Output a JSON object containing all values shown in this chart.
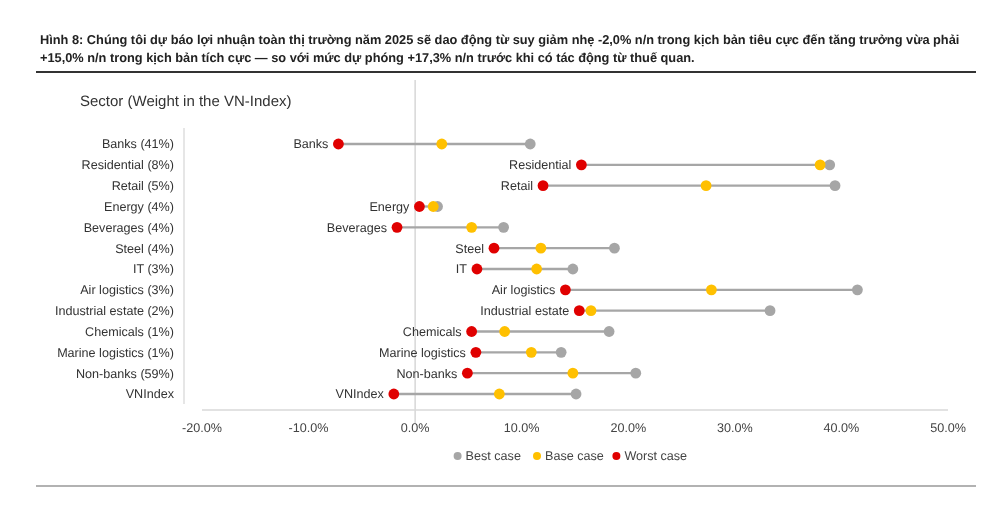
{
  "chart_data": {
    "type": "scatter",
    "orientation": "horizontal",
    "title": "Hình 8: Chúng tôi dự báo lợi nhuận toàn thị trường năm 2025 sẽ dao động từ suy giảm nhẹ -2,0% n/n trong kịch bản tiêu cực đến tăng trưởng vừa phải +15,0% n/n trong kịch bản tích cực — so với mức dự phóng +17,3% n/n trước khi có tác động từ thuế quan.",
    "ylabel": "Sector (Weight in the VN-Index)",
    "categories": [
      "Banks (41%)",
      "Residential (8%)",
      "Retail (5%)",
      "Energy (4%)",
      "Beverages (4%)",
      "Steel (4%)",
      "IT (3%)",
      "Air logistics (3%)",
      "Industrial estate (2%)",
      "Chemicals (1%)",
      "Marine logistics (1%)",
      "Non-banks (59%)",
      "VNIndex"
    ],
    "series": [
      {
        "name": "Best case",
        "color": "#a6a6a6",
        "values": [
          10.8,
          38.9,
          39.4,
          2.1,
          8.3,
          18.7,
          14.8,
          41.5,
          33.3,
          18.2,
          13.7,
          20.7,
          15.1
        ]
      },
      {
        "name": "Base case",
        "color": "#ffc000",
        "values": [
          2.5,
          38.0,
          27.3,
          1.7,
          5.3,
          11.8,
          11.4,
          27.8,
          16.5,
          8.4,
          10.9,
          14.8,
          7.9
        ]
      },
      {
        "name": "Worst case",
        "color": "#e00000",
        "values": [
          -7.2,
          15.6,
          12.0,
          0.4,
          -1.7,
          7.4,
          5.8,
          14.1,
          15.4,
          5.3,
          5.7,
          4.9,
          -2.0
        ]
      }
    ],
    "annotations": [
      {
        "text": "Banks",
        "x": -7.2,
        "y": "Banks (41%)"
      },
      {
        "text": "Residential",
        "x": 15.6,
        "y": "Residential (8%)"
      },
      {
        "text": "Retail",
        "x": 12.0,
        "y": "Retail (5%)"
      },
      {
        "text": "Energy",
        "x": 0.4,
        "y": "Energy (4%)"
      },
      {
        "text": "Beverages",
        "x": -1.7,
        "y": "Beverages (4%)"
      },
      {
        "text": "Steel",
        "x": 7.4,
        "y": "Steel (4%)"
      },
      {
        "text": "IT",
        "x": 5.8,
        "y": "IT (3%)"
      },
      {
        "text": "Air logistics",
        "x": 14.1,
        "y": "Air logistics (3%)"
      },
      {
        "text": "Industrial estate",
        "x": 15.4,
        "y": "Industrial estate (2%)"
      },
      {
        "text": "Chemicals",
        "x": 5.3,
        "y": "Chemicals (1%)"
      },
      {
        "text": "Marine logistics",
        "x": 5.7,
        "y": "Marine logistics (1%)"
      },
      {
        "text": "Non-banks",
        "x": 4.9,
        "y": "Non-banks (59%)"
      },
      {
        "text": "VNIndex",
        "x": -2.0,
        "y": "VNIndex"
      }
    ],
    "xlim": [
      -20,
      50
    ],
    "xticks": [
      {
        "value": -20,
        "label": "-20.0%"
      },
      {
        "value": -10,
        "label": "-10.0%"
      },
      {
        "value": 0,
        "label": "0.0%"
      },
      {
        "value": 10,
        "label": "10.0%"
      },
      {
        "value": 20,
        "label": "20.0%"
      },
      {
        "value": 30,
        "label": "30.0%"
      },
      {
        "value": 40,
        "label": "40.0%"
      },
      {
        "value": 50,
        "label": "50.0%"
      }
    ],
    "ref_lines": [
      {
        "axis": "x",
        "value": 0,
        "color": "#d9d9d9"
      }
    ],
    "marker": "circle",
    "legend": "bottom",
    "grid": false
  }
}
